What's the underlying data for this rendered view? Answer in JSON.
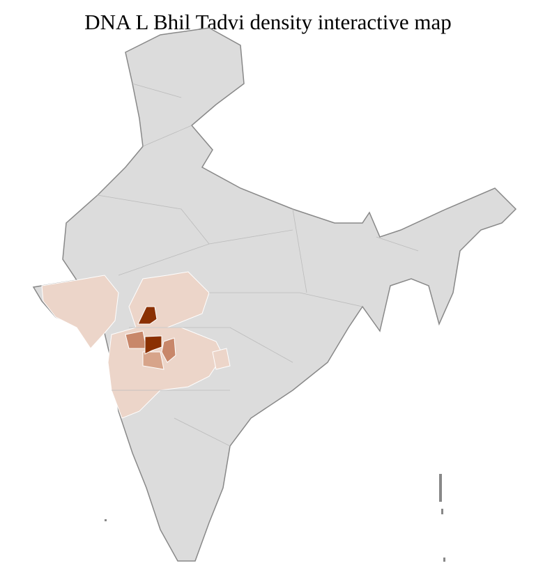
{
  "title": "DNA L Bhil Tadvi density interactive map",
  "colors": {
    "no_data": "#dcdcdc",
    "level_1": "#ecd5c9",
    "level_2": "#d7a48a",
    "level_3": "#c8876a",
    "level_4": "#8b3002"
  }
}
